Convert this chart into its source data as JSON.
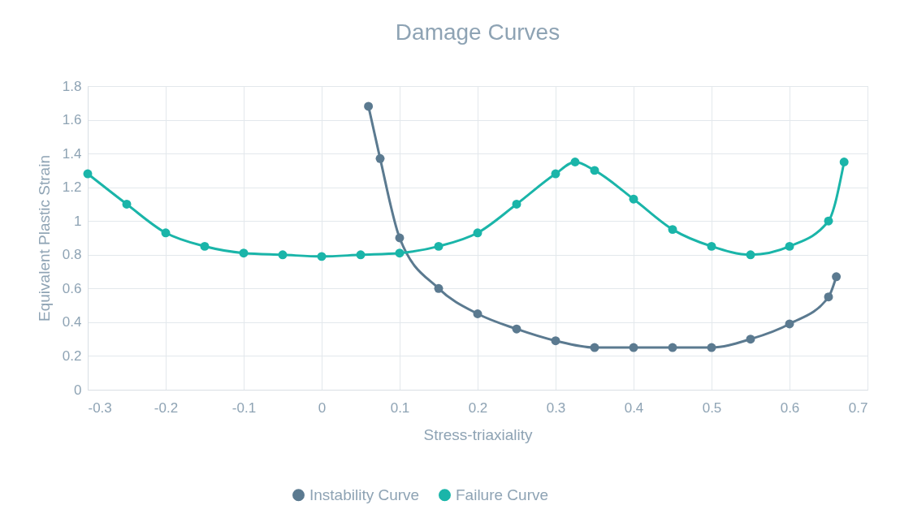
{
  "chart_data": {
    "type": "line",
    "title": "Damage Curves",
    "xlabel": "Stress-triaxiality",
    "ylabel": "Equivalent Plastic Strain",
    "xlim": [
      -0.3,
      0.7
    ],
    "xticks": [
      -0.3,
      -0.2,
      -0.1,
      0,
      0.1,
      0.2,
      0.3,
      0.4,
      0.5,
      0.6,
      0.7
    ],
    "ylim": [
      0,
      1.8
    ],
    "yticks": [
      0,
      0.2,
      0.4,
      0.6,
      0.8,
      1,
      1.2,
      1.4,
      1.6,
      1.8
    ],
    "grid": true,
    "legend": "bottom",
    "marker": "circle",
    "line_style": "solid",
    "series": [
      {
        "name": "Instability Curve",
        "color": "#5b7a90",
        "x": [
          0.06,
          0.075,
          0.1,
          0.15,
          0.2,
          0.25,
          0.3,
          0.35,
          0.4,
          0.45,
          0.5,
          0.55,
          0.6,
          0.65,
          0.66
        ],
        "values": [
          1.68,
          1.37,
          0.9,
          0.6,
          0.45,
          0.36,
          0.29,
          0.25,
          0.25,
          0.25,
          0.25,
          0.3,
          0.39,
          0.55,
          0.67
        ]
      },
      {
        "name": "Failure Curve",
        "color": "#1ab5a9",
        "x": [
          -0.3,
          -0.25,
          -0.2,
          -0.15,
          -0.1,
          -0.05,
          0,
          0.05,
          0.1,
          0.15,
          0.2,
          0.25,
          0.3,
          0.325,
          0.35,
          0.4,
          0.45,
          0.5,
          0.55,
          0.6,
          0.65,
          0.67
        ],
        "values": [
          1.28,
          1.1,
          0.93,
          0.85,
          0.81,
          0.8,
          0.79,
          0.8,
          0.81,
          0.85,
          0.93,
          1.1,
          1.28,
          1.35,
          1.3,
          1.13,
          0.95,
          0.85,
          0.8,
          0.85,
          1.0,
          1.35
        ]
      }
    ]
  }
}
